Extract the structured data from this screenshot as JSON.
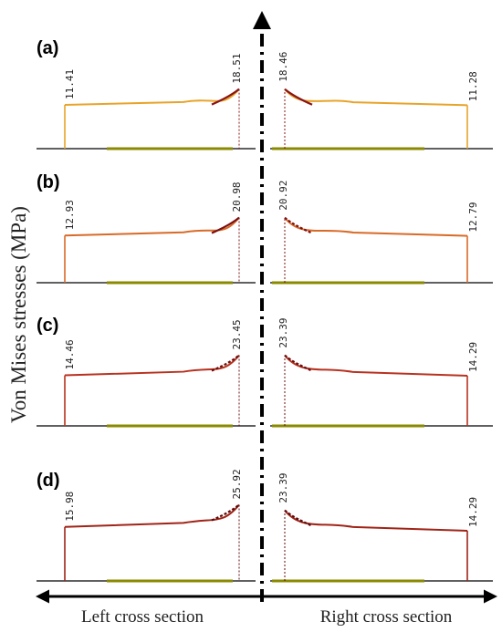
{
  "chart_data": {
    "type": "line",
    "ylabel": "Von Mises stresses (MPa)",
    "left_label": "Left cross section",
    "right_label": "Right cross section",
    "panels": [
      {
        "label": "(a)",
        "left_edge": 11.41,
        "left_peak": 18.51,
        "right_peak": 18.46,
        "right_edge": 11.28,
        "color": "#e8a42a",
        "peak_color": "#8a1414"
      },
      {
        "label": "(b)",
        "left_edge": 12.93,
        "left_peak": 20.98,
        "right_peak": 20.92,
        "right_edge": 12.79,
        "color": "#d86a28",
        "peak_color": "#7a1010"
      },
      {
        "label": "(c)",
        "left_edge": 14.46,
        "left_peak": 23.45,
        "right_peak": 23.39,
        "right_edge": 14.29,
        "color": "#b83220",
        "peak_color": "#6a0c0c"
      },
      {
        "label": "(d)",
        "left_edge": 15.98,
        "left_peak": 25.92,
        "right_peak": 23.39,
        "right_edge": 14.29,
        "color": "#a02418",
        "peak_color": "#5c0a0a"
      }
    ]
  }
}
